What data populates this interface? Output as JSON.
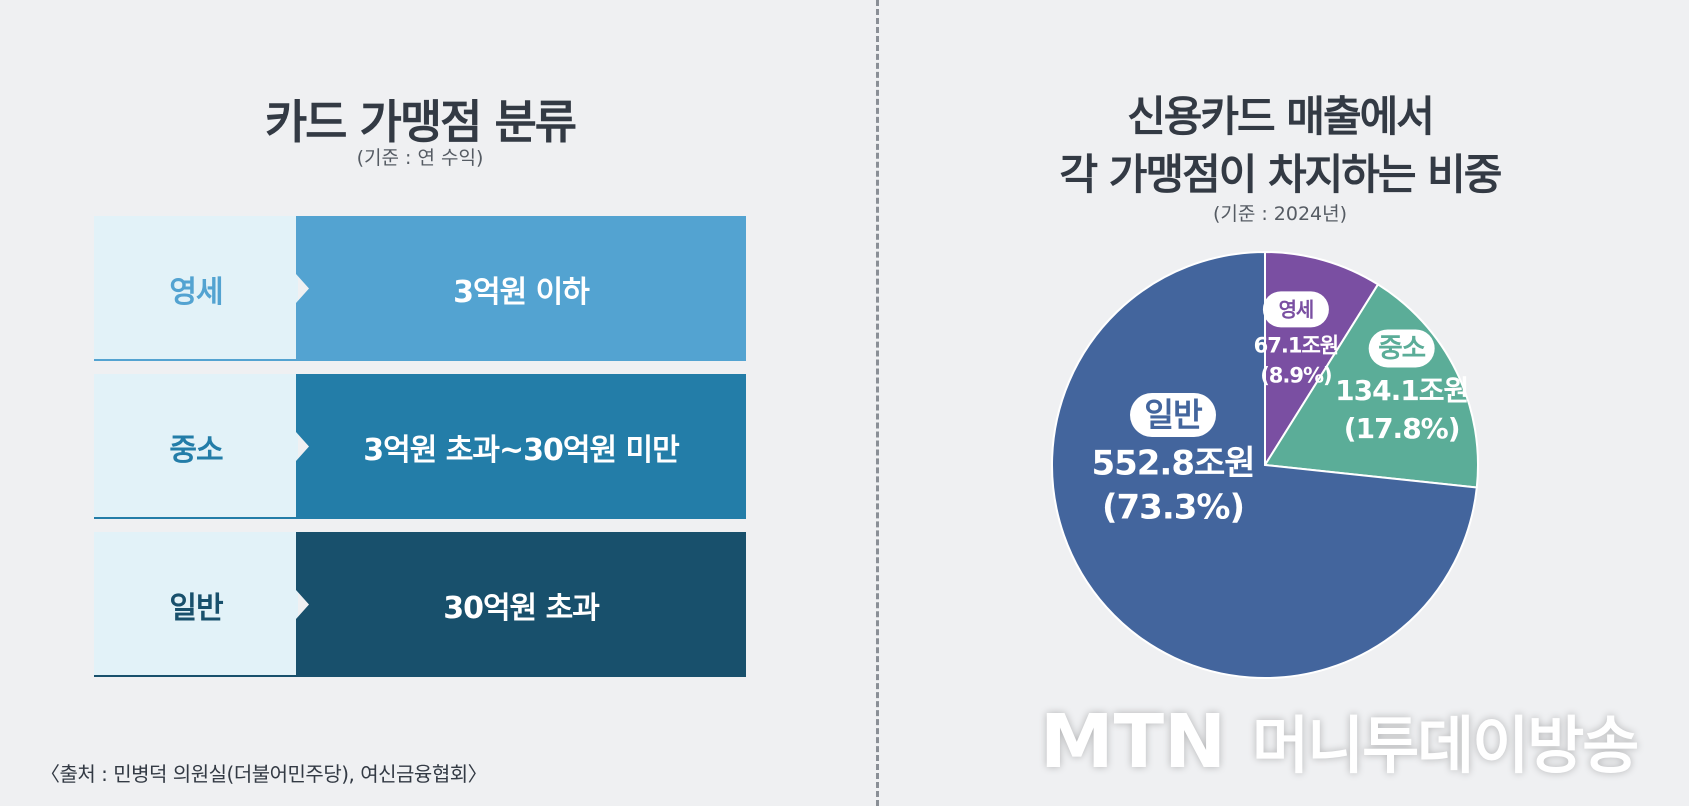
{
  "left_panel": {
    "title": "카드 가맹점 분류",
    "subtitle": "(기준 : 연 수익)",
    "rows": [
      {
        "label": "영세",
        "value": "3억원 이하",
        "label_color": "#53a3d1",
        "bg": "#53a3d1"
      },
      {
        "label": "중소",
        "value": "3억원 초과~30억원 미만",
        "label_color": "#237da8",
        "bg": "#237da8"
      },
      {
        "label": "일반",
        "value": "30억원 초과",
        "label_color": "#18506c",
        "bg": "#18506c"
      }
    ]
  },
  "source": "〈출처 : 민병덕 의원실(더불어민주당), 여신금융협회〉",
  "right_panel": {
    "title_line1": "신용카드 매출에서",
    "title_line2": "각 가맹점이 차지하는 비중",
    "subtitle": "(기준 : 2024년)"
  },
  "chart_data": {
    "type": "pie",
    "title": "신용카드 매출에서 각 가맹점이 차지하는 비중",
    "subtitle": "(기준 : 2024년)",
    "slices": [
      {
        "name": "영세",
        "value": 67.1,
        "percent": 8.9,
        "value_label": "67.1조원",
        "percent_label": "(8.9%)",
        "color": "#7a4fa2"
      },
      {
        "name": "중소",
        "value": 134.1,
        "percent": 17.8,
        "value_label": "134.1조원",
        "percent_label": "(17.8%)",
        "color": "#5bad98"
      },
      {
        "name": "일반",
        "value": 552.8,
        "percent": 73.3,
        "value_label": "552.8조원",
        "percent_label": "(73.3%)",
        "color": "#43659d"
      }
    ]
  },
  "watermark": {
    "logo": "MTN",
    "text": "머니투데이방송"
  }
}
